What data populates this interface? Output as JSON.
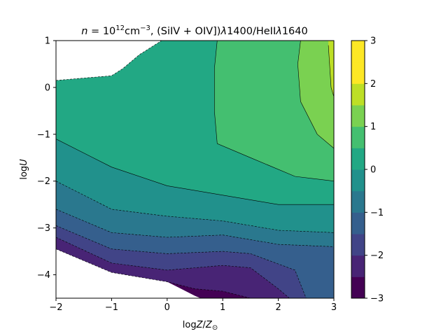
{
  "chart_data": {
    "type": "contourf",
    "title": "n = 10^12 cm^-3, (SiIV + OIV])λ1400/HeIIλ1640",
    "title_parts": {
      "n": "n",
      "eq": " = 10",
      "exp": "12",
      "unit": "cm",
      "unit_exp": "−3",
      "ratio": ", (SiIV + OIV])",
      "lam1": "λ",
      "num": "1400/HeII",
      "lam2": "λ",
      "den": "1640"
    },
    "xlabel": {
      "prefix": "log",
      "var": "Z",
      "slash": "/",
      "var2": "Z",
      "sub": "⊙"
    },
    "ylabel": {
      "prefix": "log",
      "var": "U"
    },
    "xlim": [
      -2,
      3
    ],
    "ylim": [
      -4.5,
      1
    ],
    "x_ticks": [
      -2,
      -1,
      0,
      1,
      2,
      3
    ],
    "x_tick_labels": [
      "−2",
      "−1",
      "0",
      "1",
      "2",
      "3"
    ],
    "y_ticks": [
      -4,
      -3,
      -2,
      -1,
      0,
      1
    ],
    "y_tick_labels": [
      "−4",
      "−3",
      "−2",
      "−1",
      "0",
      "1"
    ],
    "colorbar": {
      "levels": [
        -3,
        -2.5,
        -2,
        -1.5,
        -1,
        -0.5,
        0,
        0.5,
        1,
        1.5,
        2,
        2.5,
        3
      ],
      "ticks": [
        -3,
        -2,
        -1,
        0,
        1,
        2,
        3
      ],
      "tick_labels": [
        "−3",
        "−2",
        "−1",
        "0",
        "1",
        "2",
        "3"
      ],
      "colors": [
        "#440154",
        "#482475",
        "#414487",
        "#355f8d",
        "#2a788e",
        "#21918c",
        "#22a884",
        "#44bf70",
        "#7ad151",
        "#bddf26",
        "#fde725",
        "#fde725"
      ]
    },
    "contour_lines": [
      {
        "level": -2.5,
        "style": "dashed",
        "points": [
          [
            -2,
            -3.45
          ],
          [
            -1,
            -3.95
          ],
          [
            0,
            -4.15
          ],
          [
            0.5,
            -4.3
          ],
          [
            1,
            -4.35
          ],
          [
            1.5,
            -4.5
          ]
        ]
      },
      {
        "level": -2.0,
        "style": "dashed",
        "points": [
          [
            -2,
            -3.2
          ],
          [
            -1,
            -3.75
          ],
          [
            0,
            -3.9
          ],
          [
            1,
            -3.8
          ],
          [
            1.5,
            -3.85
          ],
          [
            2,
            -4.3
          ],
          [
            2.2,
            -4.5
          ]
        ]
      },
      {
        "level": -1.5,
        "style": "dashed",
        "points": [
          [
            -2,
            -2.95
          ],
          [
            -1,
            -3.45
          ],
          [
            0,
            -3.55
          ],
          [
            1,
            -3.5
          ],
          [
            1.5,
            -3.55
          ],
          [
            2.3,
            -3.9
          ],
          [
            2.5,
            -4.5
          ]
        ]
      },
      {
        "level": -1.0,
        "style": "dashed",
        "points": [
          [
            -2,
            -2.6
          ],
          [
            -1,
            -3.1
          ],
          [
            0,
            -3.2
          ],
          [
            1,
            -3.15
          ],
          [
            2,
            -3.35
          ],
          [
            3,
            -3.4
          ]
        ]
      },
      {
        "level": -0.5,
        "style": "dashed",
        "points": [
          [
            -2,
            -2.0
          ],
          [
            -1,
            -2.6
          ],
          [
            0,
            -2.75
          ],
          [
            1,
            -2.85
          ],
          [
            2,
            -3.05
          ],
          [
            3,
            -3.1
          ]
        ]
      },
      {
        "level": 0.0,
        "style": "solid",
        "points": [
          [
            -2,
            -1.1
          ],
          [
            -1,
            -1.7
          ],
          [
            0,
            -2.1
          ],
          [
            1,
            -2.3
          ],
          [
            2,
            -2.5
          ],
          [
            2.6,
            -2.5
          ],
          [
            3,
            -2.5
          ]
        ]
      },
      {
        "level": 0.5,
        "style": "solid",
        "points": [
          [
            0.9,
            1
          ],
          [
            0.85,
            0.4
          ],
          [
            0.85,
            -0.5
          ],
          [
            0.9,
            -1.2
          ],
          [
            1.5,
            -1.5
          ],
          [
            2.3,
            -1.9
          ],
          [
            3,
            -2.0
          ]
        ]
      },
      {
        "level": 1.0,
        "style": "solid",
        "points": [
          [
            2.4,
            1
          ],
          [
            2.35,
            0.5
          ],
          [
            2.4,
            -0.3
          ],
          [
            2.7,
            -1.0
          ],
          [
            3,
            -1.3
          ]
        ]
      },
      {
        "level": 1.5,
        "style": "solid",
        "points": [
          [
            2.9,
            0.9
          ],
          [
            2.95,
            0.0
          ],
          [
            3,
            -0.2
          ]
        ]
      }
    ]
  }
}
